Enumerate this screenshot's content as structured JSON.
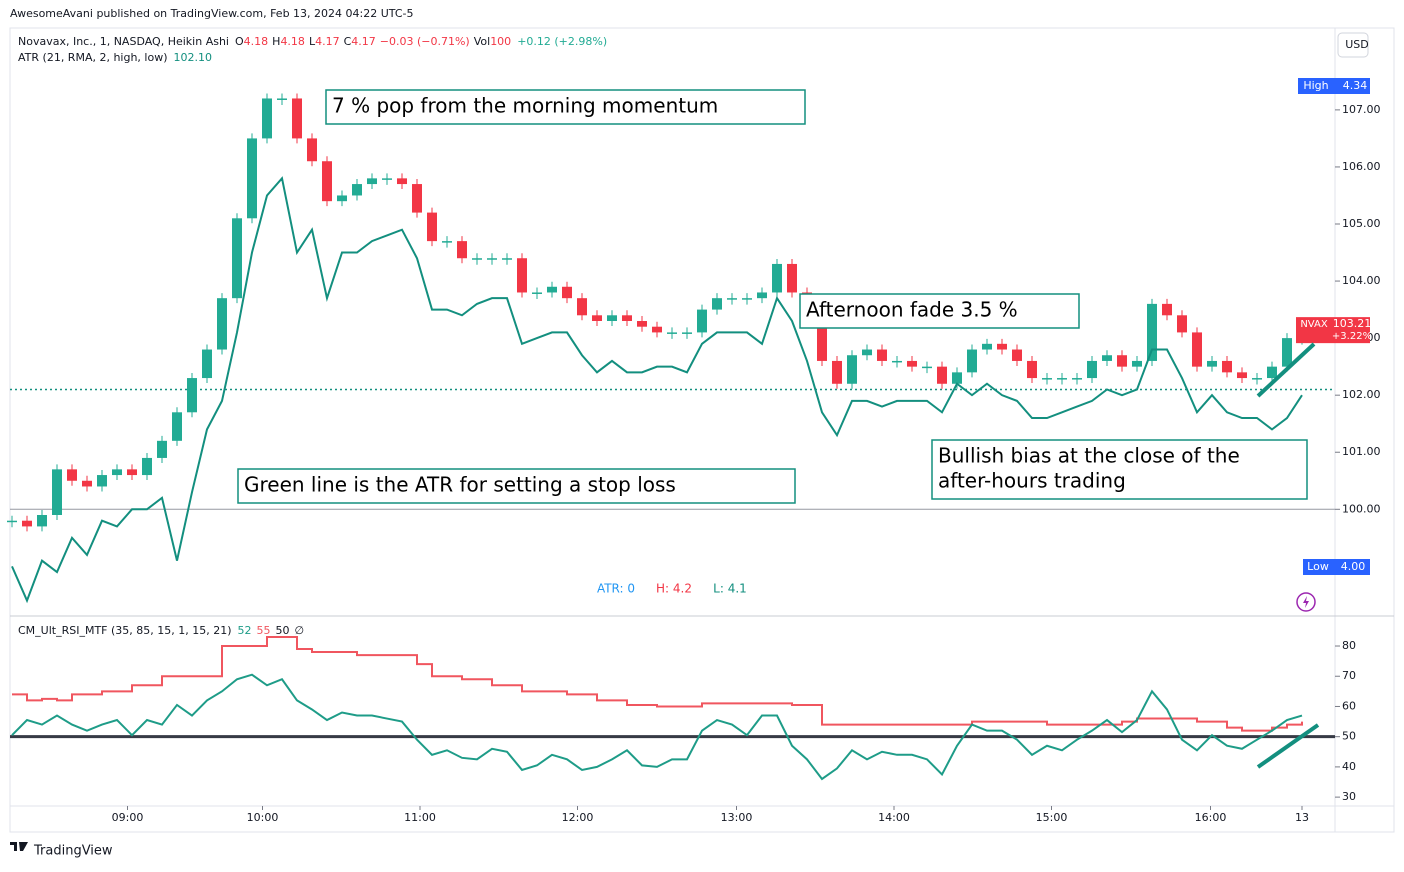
{
  "header": {
    "publisher": "AwesomeAvani published on TradingView.com, Feb 13, 2024 04:22 UTC-5",
    "ohlc": [
      "O",
      "4.18",
      "H",
      "4.18",
      "L",
      "4.17",
      "C",
      "4.17",
      "−0.03 (−0.71%)"
    ],
    "volume": [
      "Vol",
      "100",
      "+0.12 (+2.98%)"
    ],
    "atr_legend": [
      "ATR (21, RMA, 2, high, low)",
      "102.10"
    ],
    "currency": "USD",
    "high_label": [
      "High",
      "4.34"
    ],
    "low_label": [
      "Low",
      "4.00"
    ],
    "atr_readout": [
      "ATR: 0",
      "H: 4.2",
      "L: 4.1"
    ],
    "rsi_legend": [
      "52",
      "55",
      "50",
      "∅"
    ],
    "brand": "TradingView"
  },
  "chart_data": [
    {
      "type": "candlestick",
      "xlim": [
        0,
        86
      ],
      "ylim": [
        98.2,
        108.4
      ],
      "yticks": [
        {
          "value": 100,
          "label": "100.00"
        },
        {
          "value": 101,
          "label": "101.00"
        },
        {
          "value": 102,
          "label": "102.00"
        },
        {
          "value": 103,
          "label": "103.00"
        },
        {
          "value": 104,
          "label": "104.00"
        },
        {
          "value": 105,
          "label": "105.00"
        },
        {
          "value": 106,
          "label": "106.00"
        },
        {
          "value": 107,
          "label": "107.00"
        }
      ],
      "reference_lines": [
        100,
        102.1
      ],
      "series": [
        {
          "name": "Novavax, Inc., 1, NASDAQ, Heikin Ashi",
          "up_color": "#22ab94",
          "down_color": "#f23645",
          "values": [
            99.8,
            99.7,
            99.9,
            100.7,
            100.5,
            100.4,
            100.6,
            100.7,
            100.6,
            100.9,
            101.2,
            101.7,
            102.3,
            102.8,
            103.7,
            105.1,
            106.5,
            107.2,
            107.2,
            106.5,
            106.1,
            105.4,
            105.5,
            105.7,
            105.8,
            105.8,
            105.7,
            105.2,
            104.7,
            104.7,
            104.4,
            104.4,
            104.4,
            104.4,
            103.8,
            103.8,
            103.9,
            103.7,
            103.4,
            103.3,
            103.4,
            103.3,
            103.2,
            103.1,
            103.1,
            103.1,
            103.5,
            103.7,
            103.7,
            103.7,
            103.8,
            104.3,
            103.8,
            103.3,
            102.6,
            102.2,
            102.7,
            102.8,
            102.6,
            102.6,
            102.5,
            102.5,
            102.2,
            102.4,
            102.8,
            102.9,
            102.8,
            102.6,
            102.3,
            102.3,
            102.3,
            102.3,
            102.6,
            102.7,
            102.5,
            102.6,
            103.6,
            103.4,
            103.1,
            102.5,
            102.6,
            102.4,
            102.3,
            102.3,
            102.5,
            103.0,
            103.0
          ]
        },
        {
          "name": "ATR (21, RMA, 2, high, low)",
          "color": "#138f7f",
          "values": [
            99.0,
            98.4,
            99.1,
            98.9,
            99.5,
            99.2,
            99.8,
            99.7,
            100.0,
            100.0,
            100.2,
            99.1,
            100.3,
            101.4,
            101.9,
            103.1,
            104.5,
            105.5,
            105.8,
            104.5,
            104.9,
            103.7,
            104.5,
            104.5,
            104.7,
            104.8,
            104.9,
            104.4,
            103.5,
            103.5,
            103.4,
            103.6,
            103.7,
            103.7,
            102.9,
            103.0,
            103.1,
            103.1,
            102.7,
            102.4,
            102.6,
            102.4,
            102.4,
            102.5,
            102.5,
            102.4,
            102.9,
            103.1,
            103.1,
            103.1,
            102.9,
            103.7,
            103.3,
            102.6,
            101.7,
            101.3,
            101.9,
            101.9,
            101.8,
            101.9,
            101.9,
            101.9,
            101.7,
            102.2,
            102.0,
            102.2,
            102.0,
            101.9,
            101.6,
            101.6,
            101.7,
            101.8,
            101.9,
            102.1,
            102.0,
            102.1,
            102.8,
            102.8,
            102.3,
            101.7,
            102.0,
            101.7,
            101.6,
            101.6,
            101.4,
            101.6,
            102.0
          ]
        }
      ],
      "last_price": {
        "symbol": "NVAX",
        "value": 103.21,
        "change": "+3.22%"
      },
      "annotations": [
        {
          "lines": [
            "7 % pop from the morning momentum"
          ]
        },
        {
          "lines": [
            "Afternoon fade 3.5 %"
          ]
        },
        {
          "lines": [
            "Green  line is the ATR for setting a stop loss"
          ]
        },
        {
          "lines": [
            "Bullish bias at the close of the",
            "after-hours trading"
          ]
        }
      ]
    },
    {
      "type": "line",
      "title": "CM_Ult_RSI_MTF (35, 85, 15, 1, 15, 21)",
      "xlim": [
        0,
        86
      ],
      "ylim": [
        26.4,
        85.3
      ],
      "yticks": [
        30,
        40,
        50,
        60,
        70,
        80
      ],
      "midline": 50,
      "xticks": [
        {
          "value": 7.7,
          "label": "09:00"
        },
        {
          "value": 16.7,
          "label": "10:00"
        },
        {
          "value": 27.2,
          "label": "11:00"
        },
        {
          "value": 37.7,
          "label": "12:00"
        },
        {
          "value": 48.3,
          "label": "13:00"
        },
        {
          "value": 58.8,
          "label": "14:00"
        },
        {
          "value": 69.3,
          "label": "15:00"
        },
        {
          "value": 79.9,
          "label": "16:00"
        },
        {
          "value": 86,
          "label": "13"
        }
      ],
      "series": [
        {
          "color": "#f0565f",
          "values": [
            64,
            62,
            62.5,
            62,
            64,
            64,
            65,
            65,
            67,
            67,
            70,
            70,
            70,
            70,
            80,
            80,
            80,
            83,
            83,
            79,
            78,
            78,
            78,
            77,
            77,
            77,
            77,
            74,
            70,
            70,
            69,
            69,
            67,
            67,
            65,
            65,
            65,
            64,
            64,
            62,
            62,
            60.5,
            60.5,
            60,
            60,
            60,
            61,
            61,
            61,
            61,
            61,
            61,
            60.5,
            60.5,
            54,
            54,
            54,
            54,
            54,
            54,
            54,
            54,
            54,
            54,
            55,
            55,
            55,
            55,
            55,
            54,
            54,
            54,
            54,
            54,
            55,
            56,
            56,
            56,
            56,
            55,
            55,
            53,
            52,
            52,
            53,
            54,
            55
          ]
        },
        {
          "color": "#1e9c88",
          "values": [
            50.5,
            55.5,
            54,
            57,
            54,
            52,
            54,
            55.5,
            50.5,
            55.5,
            54,
            60.5,
            57,
            62,
            65,
            69,
            70.5,
            67,
            69,
            62,
            59,
            55.5,
            58,
            57,
            57,
            56,
            55,
            49,
            44,
            45.5,
            43,
            42.5,
            46,
            45,
            39,
            40.5,
            44,
            42.5,
            39,
            40,
            42.5,
            45.5,
            40.5,
            40,
            42.5,
            42.5,
            52,
            55.5,
            54,
            50.5,
            57,
            57,
            47,
            42.5,
            36,
            39.5,
            45.5,
            42.5,
            45,
            44,
            44,
            42.5,
            37.5,
            47,
            54,
            52,
            52,
            49,
            44,
            47,
            45.5,
            49,
            52,
            55.5,
            51.5,
            55.5,
            65,
            59,
            49,
            45.5,
            50.5,
            47,
            46,
            49,
            52,
            55.5,
            57
          ]
        }
      ]
    }
  ]
}
